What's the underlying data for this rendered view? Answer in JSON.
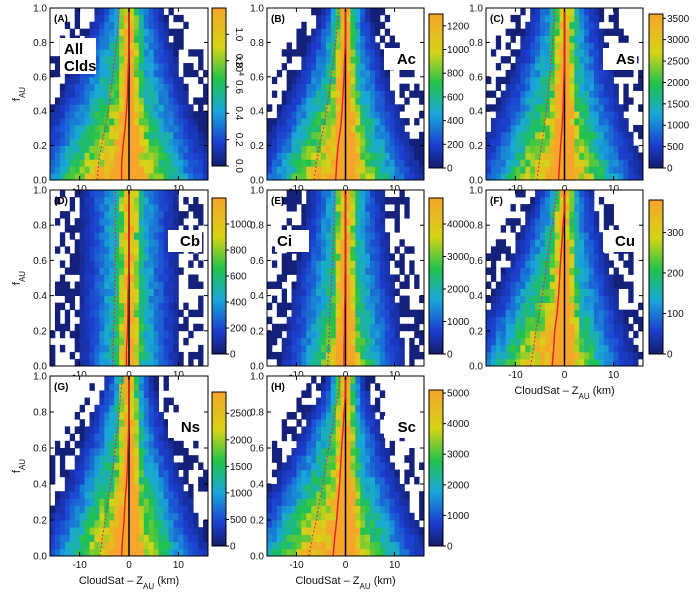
{
  "figure": {
    "common_ylabel": "f",
    "common_ylabel_sub": "AU",
    "common_xlabel": "CloudSat – Z",
    "common_xlabel_sub": "AU",
    "common_xlabel_unit": " (km)"
  },
  "chart_data": [
    {
      "type": "heatmap",
      "panel": "(A)",
      "cloud_type": "All Clds",
      "xlim": [
        -16,
        16
      ],
      "ylim": [
        0,
        1
      ],
      "x_ticks": [
        -10,
        0,
        10
      ],
      "y_ticks": [
        0.0,
        0.2,
        0.4,
        0.6,
        0.8,
        1.0
      ],
      "colorbar": {
        "min": 0,
        "max": 1.2,
        "ticks": [
          0.0,
          0.2,
          0.4,
          0.6,
          0.8,
          1.0
        ],
        "multiplier": "x10",
        "exponent": "4",
        "tick_labels_rotated": true
      },
      "xlabel": "",
      "ylabel": "f",
      "ylabel_sub": "AU",
      "distribution": {
        "spread_top": 3.5,
        "spread_bottom": 9,
        "skew": -2,
        "peak_fraction_bottom": 0.95
      },
      "median_curve": {
        "y": [
          0.0,
          0.1,
          0.2,
          0.3,
          0.4,
          0.5,
          0.6,
          0.7,
          0.8,
          0.9,
          1.0
        ],
        "x": [
          -1.5,
          -1.5,
          -1.2,
          -0.8,
          -0.5,
          -0.3,
          -0.2,
          -0.1,
          0.0,
          0.0,
          0.0
        ]
      }
    },
    {
      "type": "heatmap",
      "panel": "(B)",
      "cloud_type": "Ac",
      "xlim": [
        -16,
        16
      ],
      "ylim": [
        0,
        1
      ],
      "x_ticks": [
        -10,
        0,
        10
      ],
      "y_ticks": [
        0.0,
        0.2,
        0.4,
        0.6,
        0.8,
        1.0
      ],
      "colorbar": {
        "min": 0,
        "max": 1300,
        "ticks": [
          0,
          200,
          400,
          600,
          800,
          1000,
          1200
        ]
      },
      "xlabel": "",
      "ylabel": "",
      "distribution": {
        "spread_top": 2.5,
        "spread_bottom": 8,
        "skew": -2,
        "peak_fraction_bottom": 0.95
      },
      "median_curve": {
        "y": [
          0.0,
          0.1,
          0.2,
          0.3,
          0.4,
          0.5,
          0.6,
          0.7,
          0.8,
          0.9,
          1.0
        ],
        "x": [
          -2.0,
          -1.8,
          -1.5,
          -1.0,
          -0.7,
          -0.5,
          -0.3,
          -0.2,
          0.0,
          0.0,
          0.0
        ]
      }
    },
    {
      "type": "heatmap",
      "panel": "(C)",
      "cloud_type": "As",
      "xlim": [
        -16,
        16
      ],
      "ylim": [
        0,
        1
      ],
      "x_ticks": [
        -10,
        0,
        10
      ],
      "y_ticks": [
        0.0,
        0.2,
        0.4,
        0.6,
        0.8,
        1.0
      ],
      "colorbar": {
        "min": 0,
        "max": 3600,
        "ticks": [
          0,
          500,
          1000,
          1500,
          2000,
          2500,
          3000,
          3500
        ]
      },
      "xlabel": "",
      "ylabel": "",
      "distribution": {
        "spread_top": 3.5,
        "spread_bottom": 8,
        "skew": -1.5,
        "peak_fraction_bottom": 0.95
      },
      "median_curve": {
        "y": [
          0.0,
          0.1,
          0.2,
          0.3,
          0.4,
          0.5,
          0.6,
          0.7,
          0.8,
          0.9,
          1.0
        ],
        "x": [
          -1.2,
          -1.0,
          -0.8,
          -0.5,
          -0.3,
          -0.2,
          -0.1,
          0.0,
          0.0,
          0.0,
          0.0
        ]
      }
    },
    {
      "type": "heatmap",
      "panel": "(D)",
      "cloud_type": "Cb",
      "xlim": [
        -16,
        16
      ],
      "ylim": [
        0,
        1
      ],
      "x_ticks": [
        -10,
        0,
        10
      ],
      "y_ticks": [
        0.0,
        0.2,
        0.4,
        0.6,
        0.8,
        1.0
      ],
      "colorbar": {
        "min": 0,
        "max": 1200,
        "ticks": [
          0,
          200,
          400,
          600,
          800,
          1000
        ]
      },
      "xlabel": "",
      "ylabel": "f",
      "ylabel_sub": "AU",
      "distribution": {
        "spread_top": 5,
        "spread_bottom": 5,
        "skew": 0,
        "peak_fraction_bottom": 0.15
      },
      "median_curve": {
        "y": [
          0.0,
          0.1,
          0.2,
          0.3,
          0.4,
          0.5,
          0.6,
          0.7,
          0.8,
          0.9,
          1.0
        ],
        "x": [
          -0.5,
          -0.5,
          -0.3,
          -0.2,
          -0.2,
          -0.1,
          0.0,
          0.0,
          0.0,
          0.0,
          0.0
        ]
      }
    },
    {
      "type": "heatmap",
      "panel": "(E)",
      "cloud_type": "Ci",
      "xlim": [
        -16,
        16
      ],
      "ylim": [
        0,
        1
      ],
      "x_ticks": [
        -10,
        0,
        10
      ],
      "y_ticks": [
        0.0,
        0.2,
        0.4,
        0.6,
        0.8,
        1.0
      ],
      "colorbar": {
        "min": 0,
        "max": 4800,
        "ticks": [
          0,
          1000,
          2000,
          3000,
          4000
        ]
      },
      "xlabel": "",
      "ylabel": "",
      "distribution": {
        "spread_top": 4,
        "spread_bottom": 6,
        "skew": -0.5,
        "peak_fraction_bottom": 0.5
      },
      "median_curve": {
        "y": [
          0.0,
          0.1,
          0.2,
          0.3,
          0.4,
          0.5,
          0.6,
          0.7,
          0.8,
          0.9,
          1.0
        ],
        "x": [
          -0.3,
          -0.3,
          -0.2,
          -0.2,
          -0.1,
          -0.1,
          0.0,
          0.0,
          0.0,
          0.0,
          0.0
        ]
      }
    },
    {
      "type": "heatmap",
      "panel": "(F)",
      "cloud_type": "Cu",
      "xlim": [
        -16,
        16
      ],
      "ylim": [
        0,
        1
      ],
      "x_ticks": [
        -10,
        0,
        10
      ],
      "y_ticks": [
        0.0,
        0.2,
        0.4,
        0.6,
        0.8,
        1.0
      ],
      "colorbar": {
        "min": 0,
        "max": 380,
        "ticks": [
          0,
          100,
          200,
          300
        ]
      },
      "xlabel": "CloudSat – Z",
      "xlabel_sub": "AU",
      "xlabel_unit": " (km)",
      "ylabel": "",
      "distribution": {
        "spread_top": 3,
        "spread_bottom": 8,
        "skew": -3,
        "peak_fraction_bottom": 0.9
      },
      "median_curve": {
        "y": [
          0.0,
          0.1,
          0.2,
          0.3,
          0.4,
          0.5,
          0.6,
          0.7,
          0.8,
          0.9,
          1.0
        ],
        "x": [
          -2.5,
          -2.2,
          -2.0,
          -1.5,
          -1.2,
          -1.0,
          -0.8,
          -0.5,
          -0.3,
          0.0,
          0.0
        ]
      }
    },
    {
      "type": "heatmap",
      "panel": "(G)",
      "cloud_type": "Ns",
      "xlim": [
        -16,
        16
      ],
      "ylim": [
        0,
        1
      ],
      "x_ticks": [
        -10,
        0,
        10
      ],
      "y_ticks": [
        0.0,
        0.2,
        0.4,
        0.6,
        0.8,
        1.0
      ],
      "colorbar": {
        "min": 0,
        "max": 2900,
        "ticks": [
          0,
          500,
          1000,
          1500,
          2000,
          2500
        ]
      },
      "xlabel": "CloudSat – Z",
      "xlabel_sub": "AU",
      "xlabel_unit": " (km)",
      "ylabel": "f",
      "ylabel_sub": "AU",
      "distribution": {
        "spread_top": 2.5,
        "spread_bottom": 8,
        "skew": -1.5,
        "peak_fraction_bottom": 0.9
      },
      "median_curve": {
        "y": [
          0.0,
          0.1,
          0.2,
          0.3,
          0.4,
          0.5,
          0.6,
          0.7,
          0.8,
          0.9,
          1.0
        ],
        "x": [
          -1.5,
          -1.3,
          -1.0,
          -0.8,
          -0.5,
          -0.3,
          -0.2,
          -0.1,
          0.0,
          0.0,
          0.0
        ]
      }
    },
    {
      "type": "heatmap",
      "panel": "(H)",
      "cloud_type": "Sc",
      "xlim": [
        -16,
        16
      ],
      "ylim": [
        0,
        1
      ],
      "x_ticks": [
        -10,
        0,
        10
      ],
      "y_ticks": [
        0.0,
        0.2,
        0.4,
        0.6,
        0.8,
        1.0
      ],
      "colorbar": {
        "min": 0,
        "max": 5100,
        "ticks": [
          0,
          1000,
          2000,
          3000,
          4000,
          5000
        ]
      },
      "xlabel": "CloudSat – Z",
      "xlabel_sub": "AU",
      "xlabel_unit": " (km)",
      "ylabel": "",
      "distribution": {
        "spread_top": 2,
        "spread_bottom": 9,
        "skew": -3,
        "peak_fraction_bottom": 0.98
      },
      "median_curve": {
        "y": [
          0.0,
          0.1,
          0.2,
          0.3,
          0.4,
          0.5,
          0.6,
          0.7,
          0.8,
          0.9,
          1.0
        ],
        "x": [
          -2.5,
          -2.2,
          -1.8,
          -1.5,
          -1.2,
          -1.0,
          -0.8,
          -0.5,
          -0.3,
          0.0,
          0.0
        ]
      }
    }
  ]
}
